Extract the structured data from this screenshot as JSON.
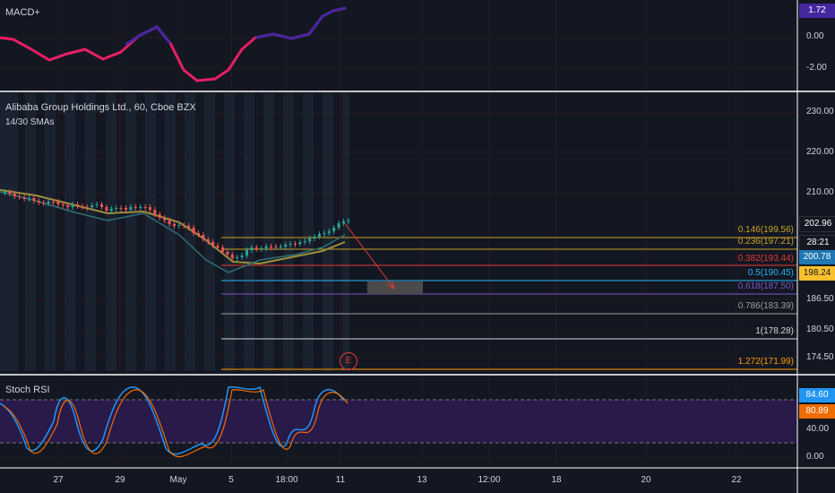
{
  "panels": {
    "macd": {
      "title": "MACD+",
      "axis": [
        "0.00",
        "-2.00"
      ],
      "last_value": "1.72",
      "last_color": "#4527a0"
    },
    "price": {
      "title": "Alibaba Group Holdings Ltd., 60, Cboe BZX",
      "subtitle": "14/30 SMAs",
      "axis": [
        "230.00",
        "220.00",
        "210.00",
        "186.50",
        "180.50",
        "174.50"
      ],
      "tags": [
        {
          "value": "202.96",
          "color": "#131722",
          "text_color": "#d1d4dc"
        },
        {
          "value": "28:21",
          "color": "#131722",
          "text_color": "#d1d4dc"
        },
        {
          "value": "200.78",
          "color": "#1f77b4",
          "text_color": "#ffffff"
        },
        {
          "value": "198.24",
          "color": "#fbc02d",
          "text_color": "#131722"
        }
      ],
      "marker": "E"
    },
    "stoch": {
      "title": "Stoch RSI",
      "axis": [
        "40.00",
        "0.00"
      ],
      "tags": [
        {
          "value": "84.60",
          "color": "#2196f3"
        },
        {
          "value": "80.89",
          "color": "#ef6c00"
        }
      ]
    }
  },
  "fib_levels": [
    {
      "label": "0.146(199.56)",
      "color": "#c9a227"
    },
    {
      "label": "0.236(197.21)",
      "color": "#c9a227"
    },
    {
      "label": "0.382(193.44)",
      "color": "#e53935"
    },
    {
      "label": "0.5(190.45)",
      "color": "#29b6f6"
    },
    {
      "label": "0.618(187.50)",
      "color": "#7e57c2"
    },
    {
      "label": "0.786(183.39)",
      "color": "#9e9e9e"
    },
    {
      "label": "1(178.28)",
      "color": "#d1d4dc"
    },
    {
      "label": "1.272(171.99)",
      "color": "#ff9800"
    }
  ],
  "time_axis": [
    "27",
    "29",
    "May",
    "5",
    "18:00",
    "11",
    "13",
    "12:00",
    "18",
    "20",
    "22"
  ],
  "colors": {
    "bg": "#131722",
    "grid": "#3a1a22",
    "separator": "#ffffff",
    "macd_up": "#4527a0",
    "macd_down": "#e91e63"
  }
}
